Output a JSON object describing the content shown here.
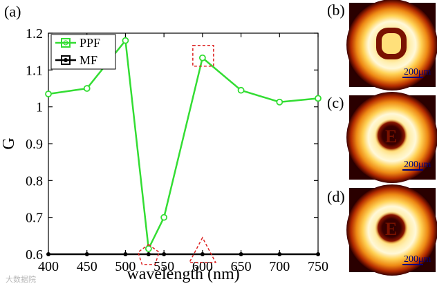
{
  "chart_data": {
    "type": "line",
    "panel_label": "(a)",
    "xlabel": "wavelength (nm)",
    "ylabel": "G",
    "xlim": [
      400,
      750
    ],
    "ylim": [
      0.6,
      1.2
    ],
    "xticks": [
      400,
      450,
      500,
      550,
      600,
      650,
      700,
      750
    ],
    "yticks": [
      0.6,
      0.7,
      0.8,
      0.9,
      1.0,
      1.1,
      1.2
    ],
    "ytick_labels": [
      "0.6",
      "0.7",
      "0.8",
      "0.9",
      "1",
      "1.1",
      "1.2"
    ],
    "series": [
      {
        "name": "PPF",
        "color": "#33dd33",
        "marker": "open-circle",
        "x": [
          400,
          450,
          500,
          530,
          550,
          600,
          650,
          700,
          750
        ],
        "y": [
          1.035,
          1.05,
          1.18,
          0.615,
          0.7,
          1.133,
          1.045,
          1.013,
          1.023
        ]
      },
      {
        "name": "MF",
        "color": "#000000",
        "marker": "filled-circle",
        "x": [
          400,
          450,
          500,
          530,
          550,
          600,
          650,
          700,
          750
        ],
        "y": [
          0.6,
          0.6,
          0.6,
          0.6,
          0.6,
          0.6,
          0.6,
          0.6,
          0.6
        ]
      }
    ],
    "annotations": [
      {
        "shape": "dashed-square",
        "x": 600,
        "y": 1.133,
        "color": "#dd2222"
      },
      {
        "shape": "dashed-pentagon",
        "x": 530,
        "y": 0.6,
        "color": "#dd2222"
      },
      {
        "shape": "dashed-triangle",
        "x": 600,
        "y": 0.6,
        "color": "#dd2222"
      }
    ],
    "legend": {
      "position": "top-left",
      "entries": [
        "PPF",
        "MF"
      ]
    }
  },
  "insets": [
    {
      "label": "(b)",
      "scale_bar": "200μm",
      "core": "ring"
    },
    {
      "label": "(c)",
      "scale_bar": "200μm",
      "core": "letter-E"
    },
    {
      "label": "(d)",
      "scale_bar": "200μm",
      "core": "letter-E"
    }
  ],
  "watermark": "大数据院"
}
